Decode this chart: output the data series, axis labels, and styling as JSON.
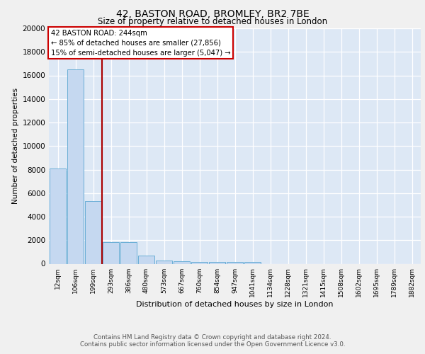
{
  "title1": "42, BASTON ROAD, BROMLEY, BR2 7BE",
  "title2": "Size of property relative to detached houses in London",
  "xlabel": "Distribution of detached houses by size in London",
  "ylabel": "Number of detached properties",
  "categories": [
    "12sqm",
    "106sqm",
    "199sqm",
    "293sqm",
    "386sqm",
    "480sqm",
    "573sqm",
    "667sqm",
    "760sqm",
    "854sqm",
    "947sqm",
    "1041sqm",
    "1134sqm",
    "1228sqm",
    "1321sqm",
    "1415sqm",
    "1508sqm",
    "1602sqm",
    "1695sqm",
    "1789sqm",
    "1882sqm"
  ],
  "values": [
    8100,
    16500,
    5300,
    1850,
    1850,
    700,
    300,
    220,
    180,
    150,
    150,
    130,
    0,
    0,
    0,
    0,
    0,
    0,
    0,
    0,
    0
  ],
  "bar_color": "#c5d8f0",
  "bar_edge_color": "#6aaed6",
  "vline_x": 2.5,
  "vline_color": "#aa0000",
  "annotation_title": "42 BASTON ROAD: 244sqm",
  "annotation_line1": "← 85% of detached houses are smaller (27,856)",
  "annotation_line2": "15% of semi-detached houses are larger (5,047) →",
  "annotation_box_color": "#ffffff",
  "annotation_box_edge": "#cc0000",
  "ylim": [
    0,
    20000
  ],
  "yticks": [
    0,
    2000,
    4000,
    6000,
    8000,
    10000,
    12000,
    14000,
    16000,
    18000,
    20000
  ],
  "background_color": "#dde8f5",
  "fig_background": "#f0f0f0",
  "footer1": "Contains HM Land Registry data © Crown copyright and database right 2024.",
  "footer2": "Contains public sector information licensed under the Open Government Licence v3.0."
}
